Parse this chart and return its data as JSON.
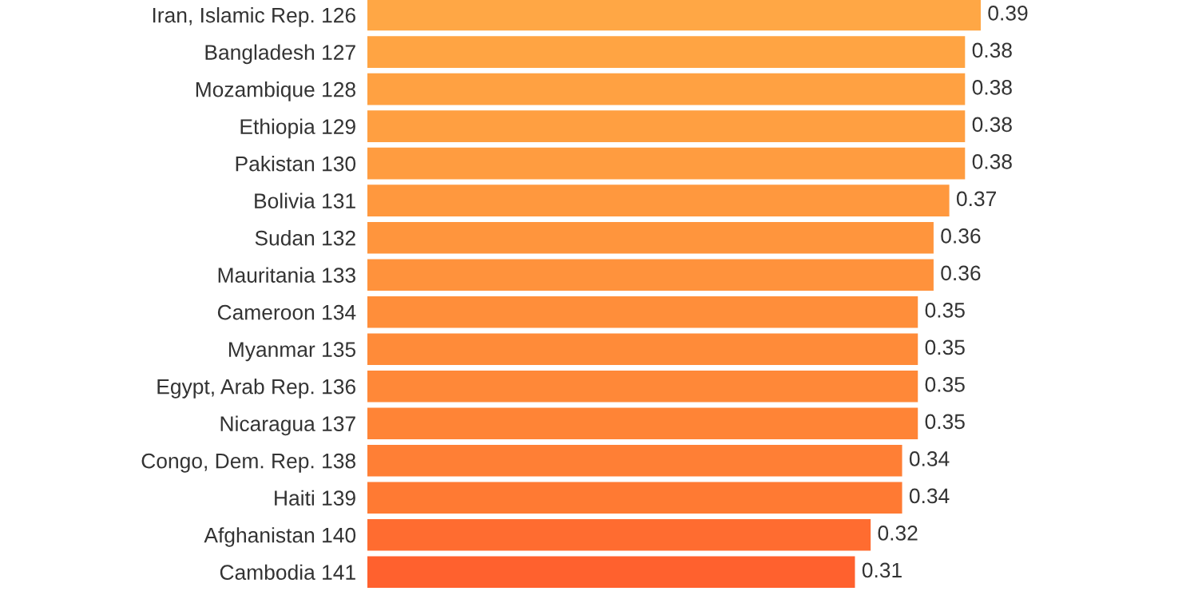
{
  "chart_data": {
    "type": "bar",
    "orientation": "horizontal",
    "data_labels": true,
    "categories": [
      "Iran, Islamic Rep. 126",
      "Bangladesh 127",
      "Mozambique 128",
      "Ethiopia 129",
      "Pakistan 130",
      "Bolivia 131",
      "Sudan 132",
      "Mauritania 133",
      "Cameroon 134",
      "Myanmar 135",
      "Egypt, Arab Rep. 136",
      "Nicaragua 137",
      "Congo, Dem. Rep. 138",
      "Haiti 139",
      "Afghanistan 140",
      "Cambodia 141"
    ],
    "values": [
      0.39,
      0.38,
      0.38,
      0.38,
      0.38,
      0.37,
      0.36,
      0.36,
      0.35,
      0.35,
      0.35,
      0.35,
      0.34,
      0.34,
      0.32,
      0.31
    ],
    "colors": [
      "#ffa745",
      "#ffa443",
      "#ffa142",
      "#ff9f41",
      "#ff9c40",
      "#ff983e",
      "#ff953d",
      "#ff923c",
      "#ff8e3a",
      "#ff8b39",
      "#ff8838",
      "#ff8436",
      "#ff7f35",
      "#ff7a33",
      "#ff6c30",
      "#ff612e"
    ]
  }
}
